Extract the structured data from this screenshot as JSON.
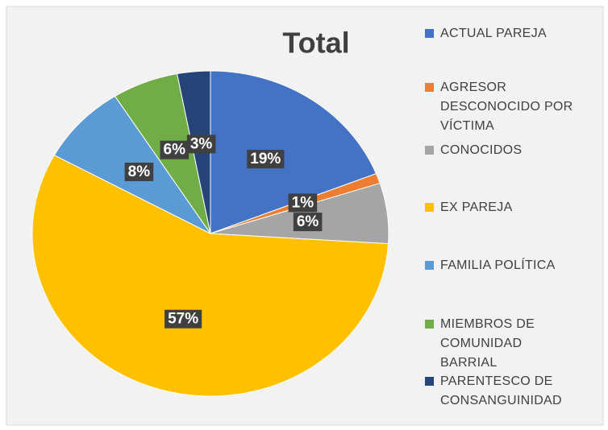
{
  "chart_data": {
    "type": "pie",
    "title": "Total",
    "categories": [
      "ACTUAL PAREJA",
      "AGRESOR DESCONOCIDO POR VÍCTIMA",
      "CONOCIDOS",
      "EX PAREJA",
      "FAMILIA POLÍTICA",
      "MIEMBROS DE COMUNIDAD BARRIAL",
      "PARENTESCO DE CONSANGUINIDAD"
    ],
    "values": [
      19,
      1,
      6,
      57,
      8,
      6,
      3
    ],
    "value_labels": [
      "19%",
      "1%",
      "6%",
      "57%",
      "8%",
      "6%",
      "3%"
    ],
    "colors": [
      "#4472c4",
      "#ed7d31",
      "#a5a5a5",
      "#ffc000",
      "#5b9bd5",
      "#70ad47",
      "#264478"
    ],
    "legend": "right"
  }
}
